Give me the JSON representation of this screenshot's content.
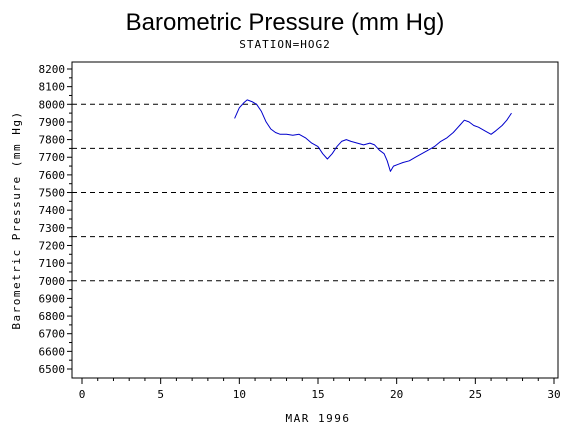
{
  "chart_data": {
    "type": "line",
    "title": "Barometric Pressure (mm Hg)",
    "subtitle": "STATION=HOG2",
    "xlabel": "MAR 1996",
    "ylabel": "Barometric Pressure (mm Hg)",
    "xlim": [
      0,
      30
    ],
    "ylim": [
      6500,
      8200
    ],
    "x_ticks": [
      0,
      5,
      10,
      15,
      20,
      25,
      30
    ],
    "y_ticks": [
      6500,
      6600,
      6700,
      6800,
      6900,
      7000,
      7100,
      7200,
      7300,
      7400,
      7500,
      7600,
      7700,
      7800,
      7900,
      8000,
      8100,
      8200
    ],
    "reference_lines": [
      7000,
      7250,
      7500,
      7750,
      8000
    ],
    "series_color": "#0000cc",
    "grid": false,
    "series": [
      {
        "x": [
          9.7,
          10.0,
          10.3,
          10.5,
          10.8,
          11.1,
          11.4,
          11.7,
          12.0,
          12.3,
          12.6,
          13.0,
          13.4,
          13.8,
          14.2,
          14.6,
          15.0,
          15.3,
          15.6,
          15.9,
          16.2,
          16.5,
          16.8,
          17.1,
          17.5,
          17.9,
          18.3,
          18.6,
          18.9,
          19.2,
          19.4,
          19.6,
          19.8,
          20.1,
          20.4,
          20.8,
          21.2,
          21.6,
          22.0,
          22.4,
          22.8,
          23.2,
          23.6,
          24.0,
          24.3,
          24.6,
          24.9,
          25.2,
          25.6,
          26.0,
          26.3,
          26.7,
          27.0,
          27.3
        ],
        "y": [
          7920,
          7980,
          8010,
          8025,
          8015,
          8000,
          7960,
          7900,
          7860,
          7840,
          7830,
          7830,
          7825,
          7830,
          7810,
          7780,
          7760,
          7720,
          7690,
          7720,
          7760,
          7790,
          7800,
          7790,
          7780,
          7770,
          7780,
          7770,
          7740,
          7720,
          7680,
          7620,
          7650,
          7660,
          7670,
          7680,
          7700,
          7720,
          7740,
          7760,
          7790,
          7810,
          7840,
          7880,
          7910,
          7900,
          7880,
          7870,
          7850,
          7830,
          7850,
          7880,
          7910,
          7950
        ]
      }
    ]
  }
}
